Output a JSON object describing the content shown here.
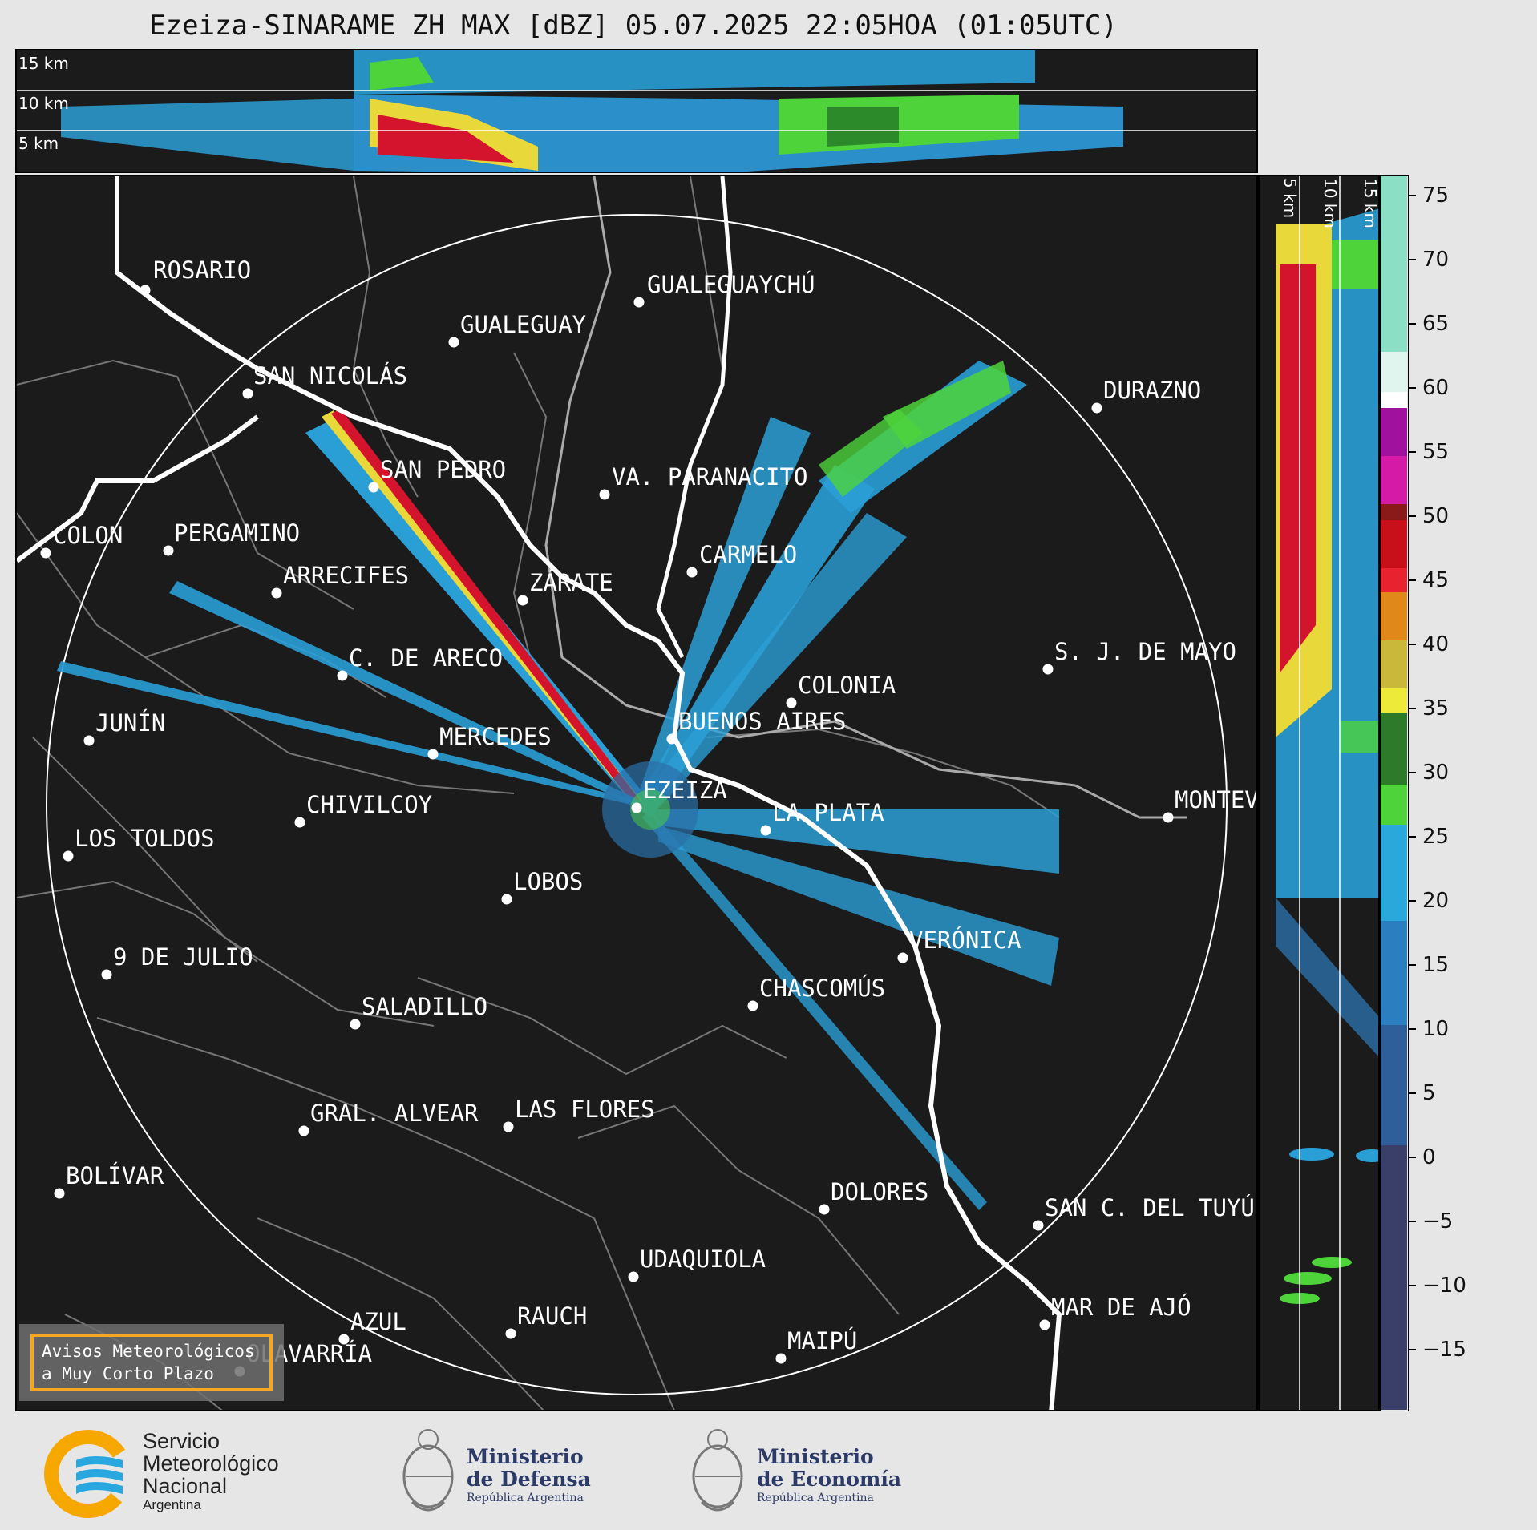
{
  "title": "Ezeiza-SINARAME ZH MAX [dBZ] 05.07.2025 22:05HOA (01:05UTC)",
  "top_panel": {
    "height_labels": [
      "15 km",
      "10 km",
      "5 km"
    ]
  },
  "side_panel": {
    "height_labels": [
      "5 km",
      "10 km",
      "15 km"
    ]
  },
  "colorbar": {
    "ticks": [
      "75",
      "70",
      "65",
      "60",
      "55",
      "50",
      "45",
      "40",
      "35",
      "30",
      "25",
      "20",
      "15",
      "10",
      "5",
      "0",
      "−5",
      "−10",
      "−15"
    ]
  },
  "cities": [
    {
      "name": "ROSARIO"
    },
    {
      "name": "GUALEGUAYCHÚ"
    },
    {
      "name": "GUALEGUAY"
    },
    {
      "name": "SAN NICOLÁS"
    },
    {
      "name": "DURAZNO"
    },
    {
      "name": "SAN PEDRO"
    },
    {
      "name": "VA. PARANACITO"
    },
    {
      "name": "COLON"
    },
    {
      "name": "PERGAMINO"
    },
    {
      "name": "CARMELO"
    },
    {
      "name": "ARRECIFES"
    },
    {
      "name": "ZÁRATE"
    },
    {
      "name": "C. DE ARECO"
    },
    {
      "name": "S. J. DE MAYO"
    },
    {
      "name": "COLONIA"
    },
    {
      "name": "JUNÍN"
    },
    {
      "name": "BUENOS AIRES"
    },
    {
      "name": "MERCEDES"
    },
    {
      "name": "EZEIZA"
    },
    {
      "name": "MONTEVIDEO"
    },
    {
      "name": "CHIVILCOY"
    },
    {
      "name": "LA PLATA"
    },
    {
      "name": "LOS TOLDOS"
    },
    {
      "name": "LOBOS"
    },
    {
      "name": "VERÓNICA"
    },
    {
      "name": "9 DE JULIO"
    },
    {
      "name": "CHASCOMÚS"
    },
    {
      "name": "SALADILLO"
    },
    {
      "name": "GRAL. ALVEAR"
    },
    {
      "name": "LAS FLORES"
    },
    {
      "name": "BOLÍVAR"
    },
    {
      "name": "DOLORES"
    },
    {
      "name": "SAN C. DEL TUYÚ"
    },
    {
      "name": "UDAQUIOLA"
    },
    {
      "name": "MAR DE AJÓ"
    },
    {
      "name": "RAUCH"
    },
    {
      "name": "AZUL"
    },
    {
      "name": "OLAVARRÍA"
    },
    {
      "name": "MAIPÚ"
    }
  ],
  "alert_box": {
    "line1": "Avisos Meteorológicos",
    "line2": "a Muy Corto Plazo"
  },
  "footer": {
    "smn": {
      "line1": "Servicio",
      "line2": "Meteorológico",
      "line3": "Nacional",
      "line4": "Argentina"
    },
    "defensa": {
      "line1": "Ministerio",
      "line2": "de Defensa",
      "line3": "República Argentina"
    },
    "economia": {
      "line1": "Ministerio",
      "line2": "de Economía",
      "line3": "República Argentina"
    }
  },
  "colors": {
    "background": "#1b1b1b",
    "page": "#e6e6e6",
    "alert_border": "#f5a623",
    "smn_orange": "#f7a800",
    "smn_blue": "#29a8e0",
    "echo_low": "#2a9fd6",
    "echo_green": "#4ed33b",
    "echo_yellow": "#e8d83a",
    "echo_red": "#d4142c"
  }
}
